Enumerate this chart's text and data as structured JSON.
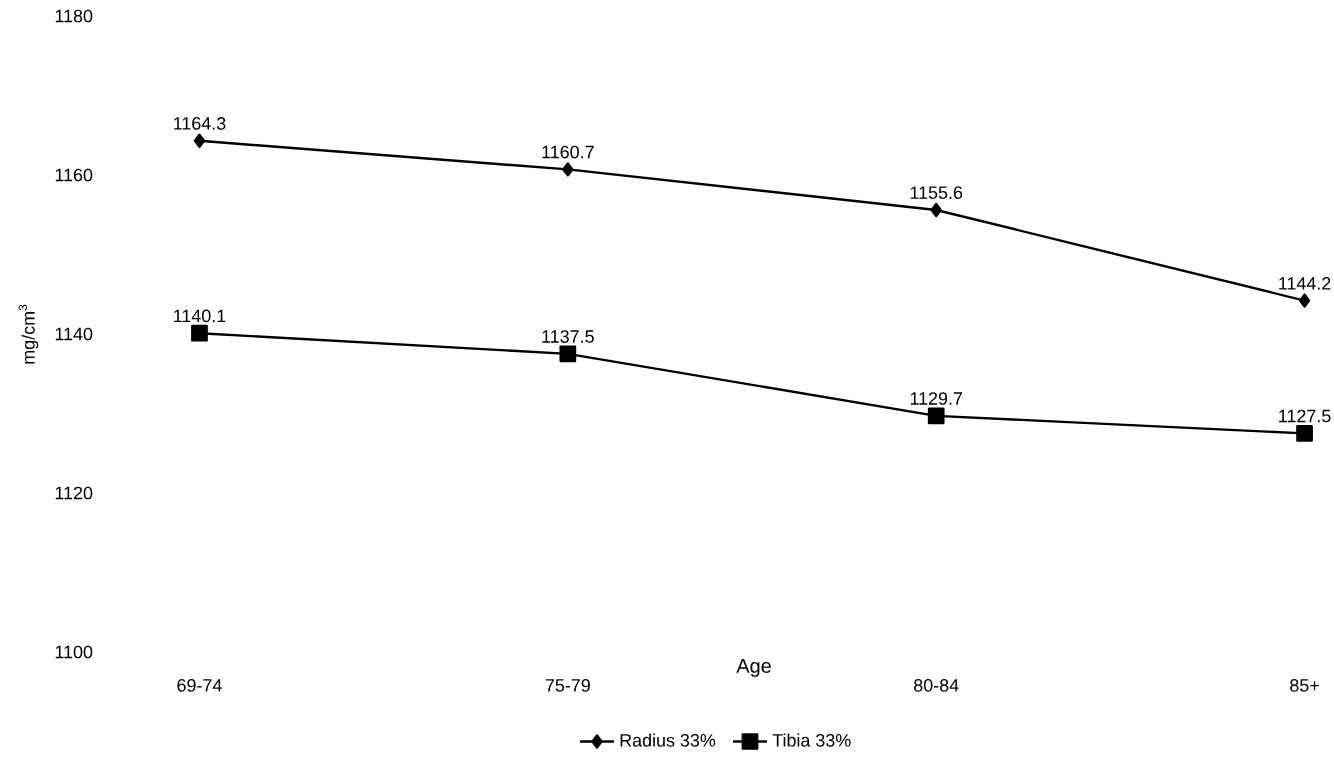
{
  "chart_data": {
    "type": "line",
    "xlabel": "Age",
    "ylabel": "mg/cm$^{3}$",
    "categories": [
      "69-74",
      "75-79",
      "80-84",
      "85+"
    ],
    "series": [
      {
        "name": "Radius 33%",
        "color": "#000000",
        "marker": "diamond",
        "values": [
          1164.3,
          1160.7,
          1155.6,
          1144.2
        ]
      },
      {
        "name": "Tibia 33%",
        "color": "#000000",
        "marker": "square",
        "values": [
          1140.1,
          1137.5,
          1129.7,
          1127.5
        ]
      }
    ],
    "ylim": [
      1100,
      1180
    ],
    "yticks": [
      1100,
      1120,
      1140,
      1160,
      1180
    ],
    "data_labels": true,
    "legend": "bottom",
    "grid": false
  }
}
